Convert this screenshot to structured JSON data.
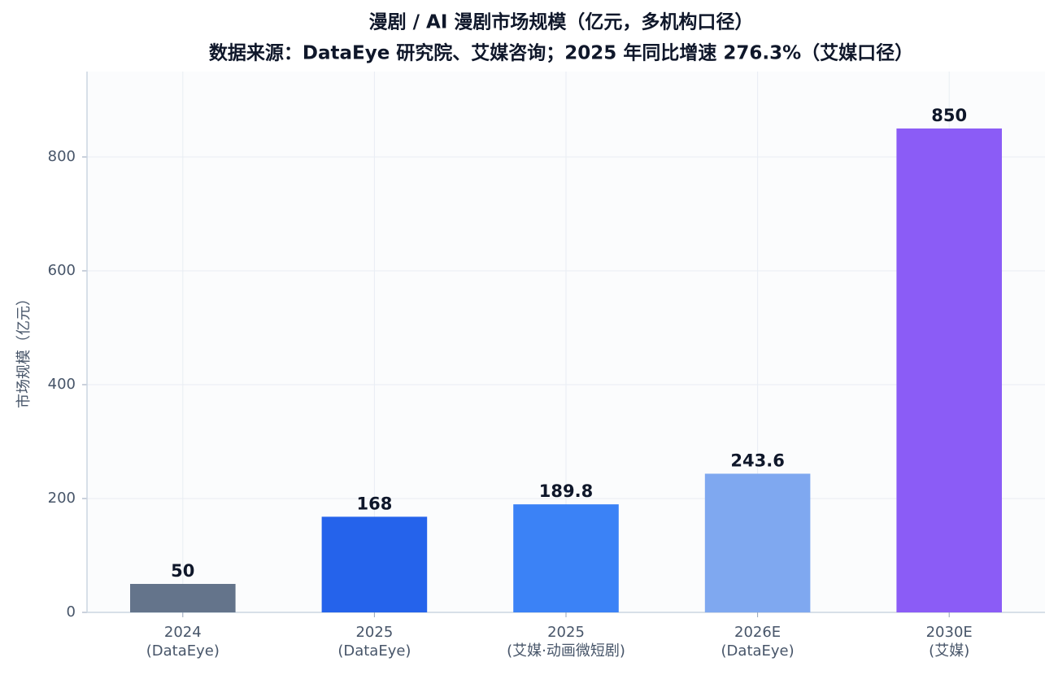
{
  "chart_data": {
    "type": "bar",
    "title": "漫剧 / AI 漫剧市场规模（亿元，多机构口径）",
    "subtitle": "数据来源：DataEye 研究院、艾媒咨询；2025 年同比增速 276.3%（艾媒口径）",
    "y_label": "市场规模（亿元）",
    "categories": [
      [
        "2024",
        "(DataEye)"
      ],
      [
        "2025",
        "(DataEye)"
      ],
      [
        "2025",
        "(艾媒·动画微短剧)"
      ],
      [
        "2026E",
        "(DataEye)"
      ],
      [
        "2030E",
        "(艾媒)"
      ]
    ],
    "values": [
      50,
      168,
      189.8,
      243.6,
      850
    ],
    "colors": [
      "#64748b",
      "#2563eb",
      "#3b82f6",
      "#7fa8f0",
      "#8b5cf6"
    ],
    "ylim": [
      0,
      950
    ],
    "yticks": [
      0,
      200,
      400,
      600,
      800
    ],
    "grid": true
  }
}
